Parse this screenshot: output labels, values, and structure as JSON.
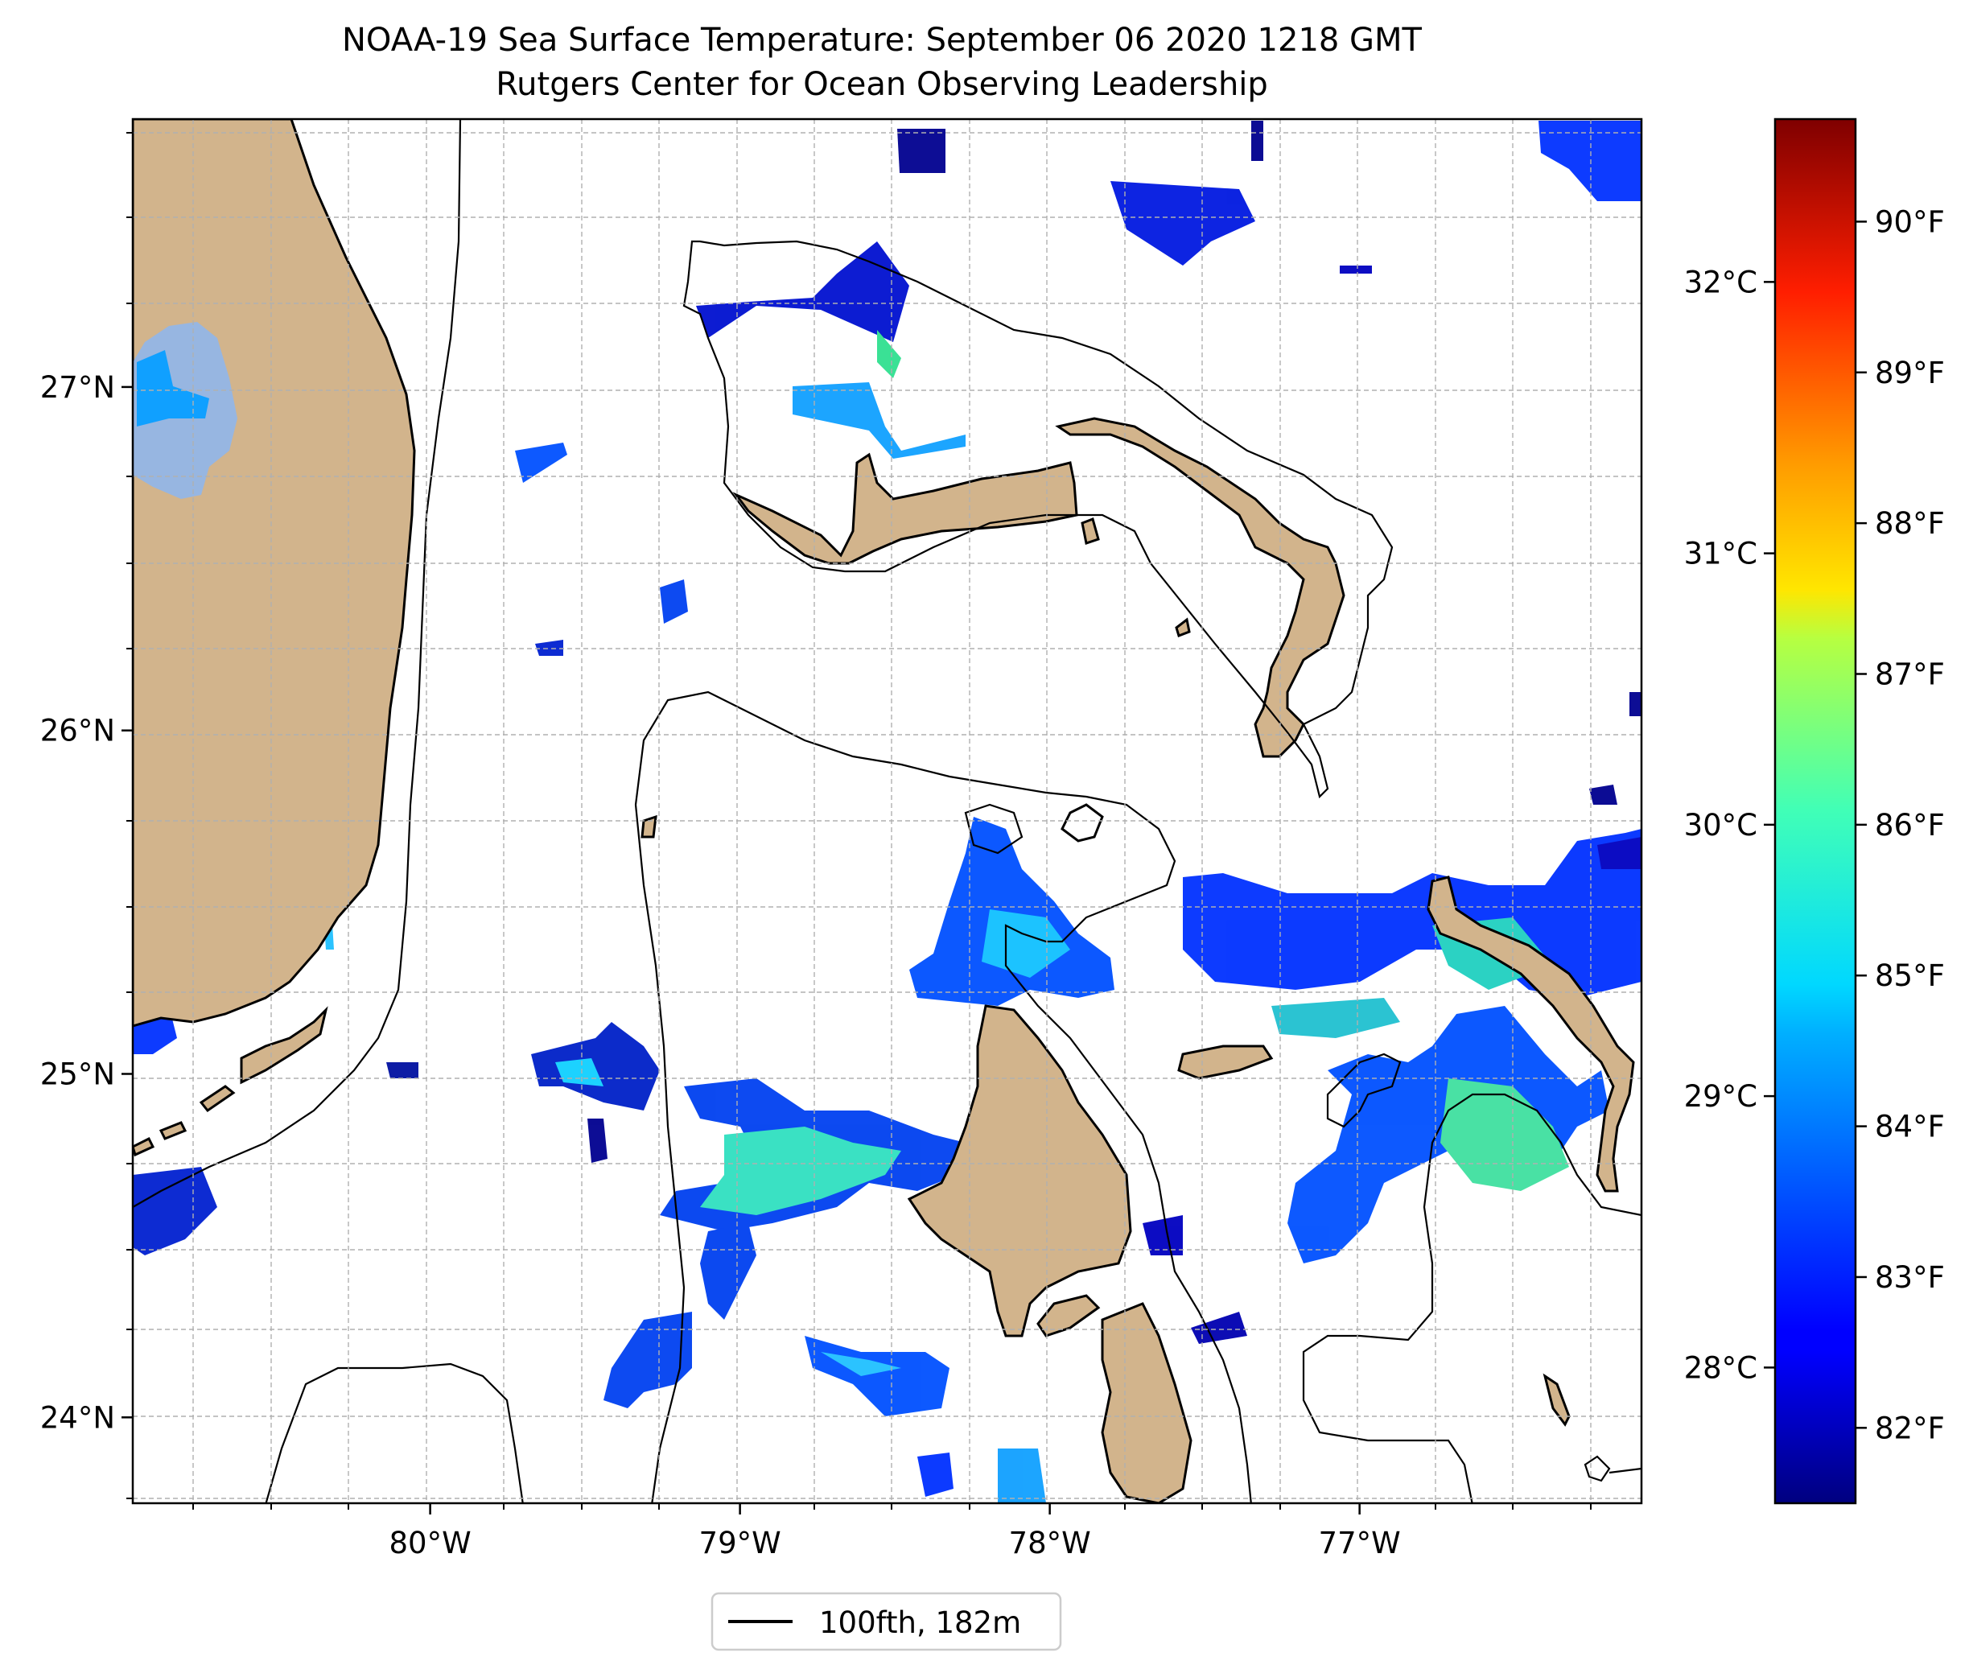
{
  "title": {
    "line1": "NOAA-19 Sea Surface Temperature: September 06 2020 1218 GMT",
    "line2": "Rutgers Center for Ocean Observing Leadership"
  },
  "map": {
    "lon_range": [
      -80.96,
      -76.09
    ],
    "lat_range": [
      23.75,
      27.78
    ],
    "lon_ticks": [
      {
        "value": -80,
        "label": "80°W"
      },
      {
        "value": -79,
        "label": "79°W"
      },
      {
        "value": -78,
        "label": "78°W"
      },
      {
        "value": -77,
        "label": "77°W"
      }
    ],
    "lat_ticks": [
      {
        "value": 27,
        "label": "27°N"
      },
      {
        "value": 26,
        "label": "26°N"
      },
      {
        "value": 25,
        "label": "25°N"
      },
      {
        "value": 24,
        "label": "24°N"
      }
    ],
    "grid": true,
    "land_color": "#d2b48c",
    "lake_color": "#97b6e1",
    "water_color": "#ffffff"
  },
  "legend": {
    "entry": "100fth, 182m",
    "line_color": "#000000",
    "placement": "bottom-center"
  },
  "colorbar": {
    "colormap": "jet",
    "range_c": [
      27.5,
      32.6
    ],
    "celsius_ticks": [
      {
        "value": 28,
        "label": "28°C"
      },
      {
        "value": 29,
        "label": "29°C"
      },
      {
        "value": 30,
        "label": "30°C"
      },
      {
        "value": 31,
        "label": "31°C"
      },
      {
        "value": 32,
        "label": "32°C"
      }
    ],
    "fahrenheit_ticks": [
      {
        "value": 82,
        "label": "82°F"
      },
      {
        "value": 83,
        "label": "83°F"
      },
      {
        "value": 84,
        "label": "84°F"
      },
      {
        "value": 85,
        "label": "85°F"
      },
      {
        "value": 86,
        "label": "86°F"
      },
      {
        "value": 87,
        "label": "87°F"
      },
      {
        "value": 88,
        "label": "88°F"
      },
      {
        "value": 89,
        "label": "89°F"
      },
      {
        "value": 90,
        "label": "90°F"
      }
    ]
  }
}
